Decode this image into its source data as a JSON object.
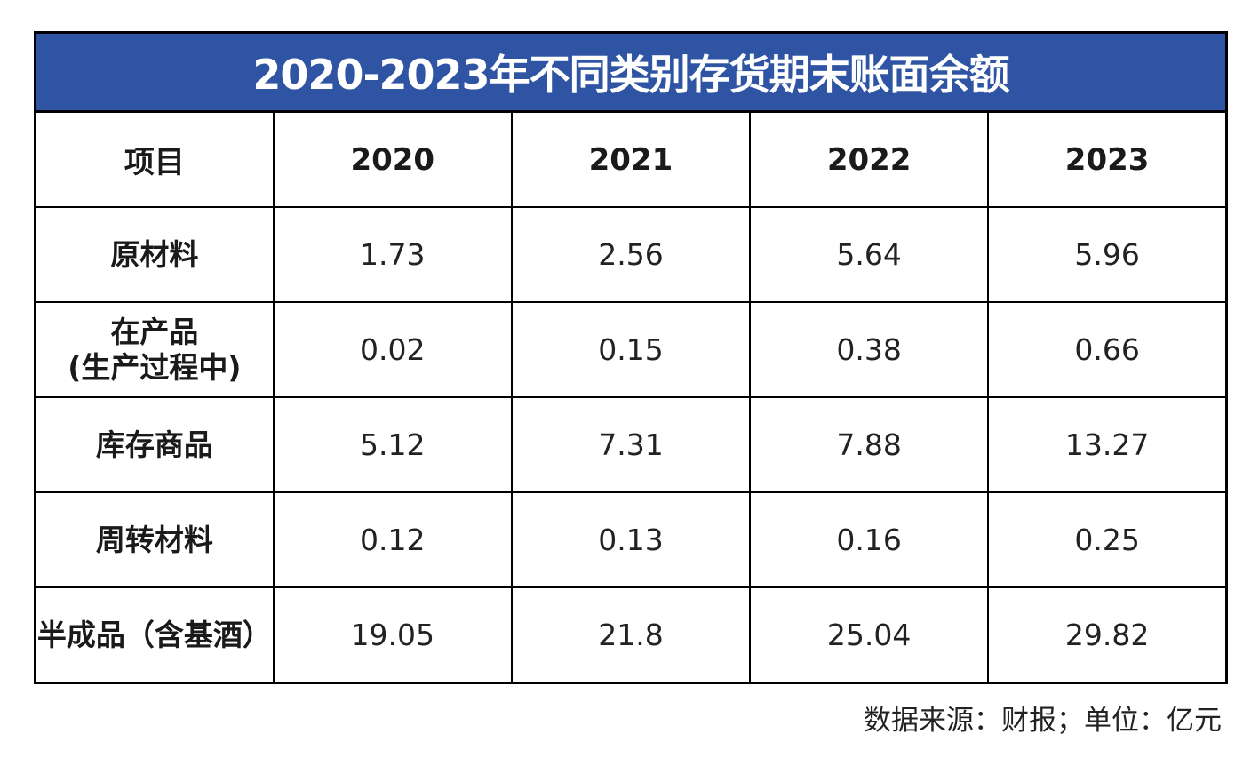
{
  "chart_data": {
    "type": "table",
    "title": "2020-2023年不同类别存货期末账面余额",
    "columns": [
      "项目",
      "2020",
      "2021",
      "2022",
      "2023"
    ],
    "rows": [
      {
        "label": "原材料",
        "label_sub": "",
        "values": [
          "1.73",
          "2.56",
          "5.64",
          "5.96"
        ]
      },
      {
        "label": "在产品",
        "label_sub": "(生产过程中)",
        "values": [
          "0.02",
          "0.15",
          "0.38",
          "0.66"
        ]
      },
      {
        "label": "库存商品",
        "label_sub": "",
        "values": [
          "5.12",
          "7.31",
          "7.88",
          "13.27"
        ]
      },
      {
        "label": "周转材料",
        "label_sub": "",
        "values": [
          "0.12",
          "0.13",
          "0.16",
          "0.25"
        ]
      },
      {
        "label": "半成品（含基酒）",
        "label_sub": "",
        "values": [
          "19.05",
          "21.8",
          "25.04",
          "29.82"
        ]
      }
    ],
    "source_note": "数据来源：财报；单位：亿元",
    "header_color": "#2e54a3"
  }
}
